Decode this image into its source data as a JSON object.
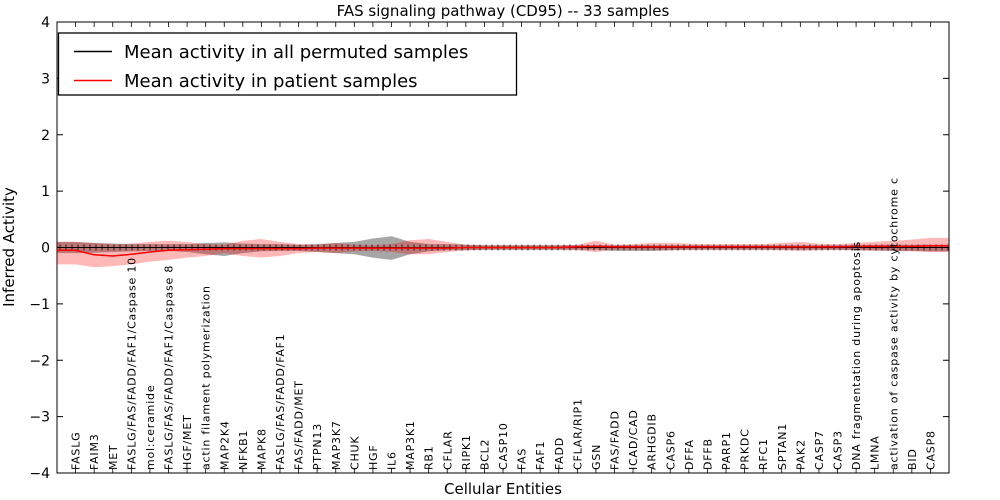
{
  "chart_data": {
    "type": "line",
    "title": "FAS signaling pathway (CD95) -- 33 samples",
    "xlabel": "Cellular Entities",
    "ylabel": "Inferred Activity",
    "ylim": [
      -4,
      4
    ],
    "yticks": [
      -4,
      -3,
      -2,
      -1,
      0,
      1,
      2,
      3,
      4
    ],
    "grid": false,
    "legend_position": "upper left",
    "colors": {
      "permuted_line": "#000000",
      "permuted_band": "#999999",
      "patient_line": "#ff0000",
      "patient_band": "#ff0000",
      "frame": "#000000",
      "background": "#ffffff"
    },
    "categories": [
      "FASLG",
      "FAIM3",
      "MET",
      "FASLG/FAS/FADD/FAF1/Caspase 10",
      "mol:ceramide",
      "FASLG/FAS/FADD/FAF1/Caspase 8",
      "HGF/MET",
      "actin filament polymerization",
      "MAP2K4",
      "NFKB1",
      "MAPK8",
      "FASLG/FAS/FADD/FAF1",
      "FAS/FADD/MET",
      "PTPN13",
      "MAP3K7",
      "CHUK",
      "HGF",
      "IL6",
      "MAP3K1",
      "RB1",
      "CFLAR",
      "RIPK1",
      "BCL2",
      "CASP10",
      "FAS",
      "FAF1",
      "FADD",
      "CFLAR/RIP1",
      "GSN",
      "FAS/FADD",
      "ICAD/CAD",
      "ARHGDIB",
      "CASP6",
      "DFFA",
      "DFFB",
      "PARP1",
      "PRKDC",
      "RFC1",
      "SPTAN1",
      "PAK2",
      "CASP7",
      "CASP3",
      "DNA fragmentation during apoptosis",
      "LMNA",
      "activation of caspase activity by cytochrome c",
      "BID",
      "CASP8"
    ],
    "series": [
      {
        "name": "Mean activity in all permuted samples",
        "color": "#000000",
        "band_alpha": 0.35,
        "mean": [
          0,
          0,
          0,
          0,
          0,
          0,
          0,
          0,
          0,
          0,
          0,
          0,
          0,
          0,
          0,
          0,
          0,
          0,
          0,
          0,
          0,
          0,
          0,
          0,
          0,
          0,
          0,
          0,
          0,
          0,
          0,
          0,
          0,
          0,
          0,
          0,
          0,
          0,
          0,
          0,
          0,
          0,
          0,
          0,
          0,
          0,
          0
        ],
        "upper": [
          0.1,
          0.08,
          0.07,
          0.06,
          0.06,
          0.06,
          0.06,
          0.08,
          0.09,
          0.07,
          0.06,
          0.06,
          0.05,
          0.06,
          0.08,
          0.1,
          0.16,
          0.2,
          0.1,
          0.06,
          0.06,
          0.05,
          0.04,
          0.04,
          0.04,
          0.04,
          0.04,
          0.04,
          0.04,
          0.04,
          0.04,
          0.04,
          0.04,
          0.04,
          0.04,
          0.04,
          0.04,
          0.04,
          0.04,
          0.04,
          0.04,
          0.04,
          0.04,
          0.05,
          0.05,
          0.05,
          0.05
        ],
        "lower": [
          -0.1,
          -0.09,
          -0.08,
          -0.07,
          -0.06,
          -0.06,
          -0.08,
          -0.12,
          -0.15,
          -0.1,
          -0.07,
          -0.06,
          -0.06,
          -0.08,
          -0.1,
          -0.12,
          -0.18,
          -0.22,
          -0.12,
          -0.07,
          -0.05,
          -0.05,
          -0.04,
          -0.04,
          -0.04,
          -0.04,
          -0.04,
          -0.04,
          -0.04,
          -0.06,
          -0.06,
          -0.06,
          -0.05,
          -0.04,
          -0.04,
          -0.04,
          -0.04,
          -0.04,
          -0.04,
          -0.04,
          -0.04,
          -0.04,
          -0.05,
          -0.05,
          -0.06,
          -0.06,
          -0.07
        ]
      },
      {
        "name": "Mean activity in patient samples",
        "color": "#ff0000",
        "band_alpha": 0.28,
        "mean": [
          -0.05,
          -0.13,
          -0.15,
          -0.12,
          -0.08,
          -0.05,
          -0.04,
          -0.03,
          -0.02,
          -0.02,
          -0.02,
          -0.02,
          -0.02,
          -0.01,
          -0.01,
          -0.01,
          -0.01,
          -0.01,
          -0.01,
          -0.01,
          -0.01,
          0,
          0,
          0,
          0,
          0,
          0,
          0.01,
          0.02,
          0.01,
          0.01,
          0.01,
          0.01,
          0.01,
          0.01,
          0.01,
          0.01,
          0.01,
          0.01,
          0.01,
          0.01,
          0.01,
          0.02,
          0.02,
          0.02,
          0.02,
          0.03
        ],
        "upper": [
          0.1,
          0.08,
          0.06,
          0.07,
          0.1,
          0.12,
          0.1,
          0.06,
          0.05,
          0.12,
          0.15,
          0.1,
          0.06,
          0.05,
          0.08,
          0.05,
          0.04,
          0.06,
          0.13,
          0.15,
          0.1,
          0.05,
          0.04,
          0.04,
          0.04,
          0.04,
          0.04,
          0.05,
          0.12,
          0.05,
          0.06,
          0.08,
          0.08,
          0.07,
          0.06,
          0.06,
          0.06,
          0.06,
          0.08,
          0.1,
          0.07,
          0.06,
          0.08,
          0.1,
          0.12,
          0.14,
          0.17
        ],
        "lower": [
          -0.3,
          -0.35,
          -0.33,
          -0.3,
          -0.25,
          -0.22,
          -0.18,
          -0.15,
          -0.1,
          -0.15,
          -0.18,
          -0.15,
          -0.1,
          -0.08,
          -0.1,
          -0.07,
          -0.06,
          -0.08,
          -0.12,
          -0.12,
          -0.08,
          -0.05,
          -0.04,
          -0.04,
          -0.04,
          -0.04,
          -0.04,
          -0.05,
          -0.08,
          -0.04,
          -0.04,
          -0.05,
          -0.05,
          -0.04,
          -0.04,
          -0.04,
          -0.04,
          -0.04,
          -0.05,
          -0.06,
          -0.05,
          -0.04,
          -0.05,
          -0.06,
          -0.06,
          -0.07,
          -0.08
        ]
      }
    ]
  }
}
